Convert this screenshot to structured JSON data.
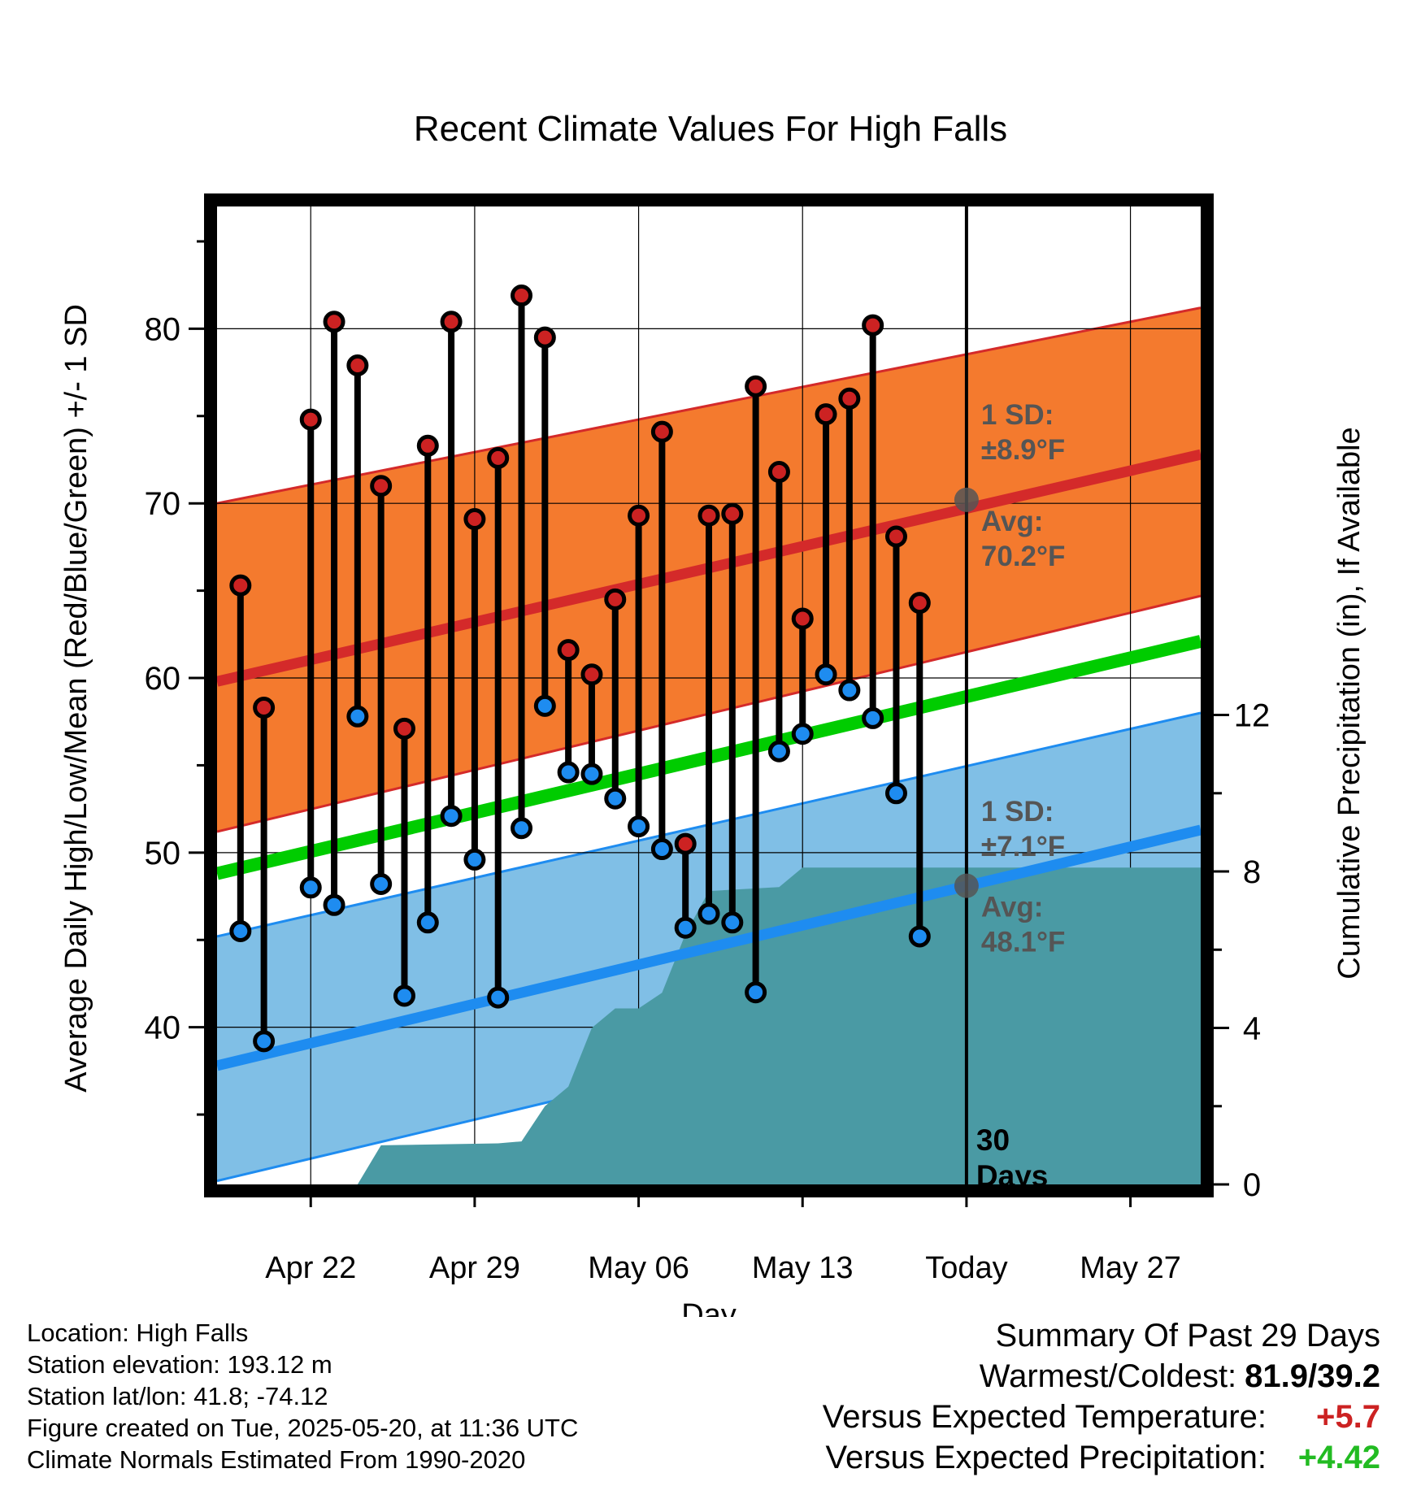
{
  "chart_data": {
    "type": "line",
    "title": "Recent Climate Values For High Falls",
    "xlabel": "Day",
    "ylabel": "Average Daily High/Low/Mean (Red/Blue/Green) +/- 1 SD",
    "y2label": "Cumulative Precipitation (in), If Available",
    "x_ticks": [
      "Apr 22",
      "Apr 29",
      "May 06",
      "May 13",
      "Today",
      "May 27"
    ],
    "y_ticks": [
      40,
      50,
      60,
      70,
      80
    ],
    "y2_ticks": [
      0,
      4,
      8,
      12
    ],
    "ylim": [
      31,
      87
    ],
    "y2lim": [
      0,
      25
    ],
    "xlim": [
      "2025-04-18",
      "2025-05-30"
    ],
    "today": "2025-05-20",
    "today_label": "30 Days",
    "normals": {
      "high_mean": [
        "2025-04-18",
        59.8,
        "2025-05-30",
        72.8
      ],
      "high_upper": [
        "2025-04-18",
        70.0,
        "2025-05-30",
        81.2
      ],
      "high_lower": [
        "2025-04-18",
        51.2,
        "2025-05-30",
        64.7
      ],
      "mean": [
        "2025-04-18",
        48.8,
        "2025-05-30",
        62.1
      ],
      "low_mean": [
        "2025-04-18",
        37.8,
        "2025-05-30",
        51.3
      ],
      "low_upper": [
        "2025-04-18",
        45.2,
        "2025-05-30",
        58.0
      ],
      "low_lower": [
        "2025-04-18",
        31.2,
        "2025-05-30",
        44.6
      ]
    },
    "high_annotation": {
      "sd": "1 SD:",
      "sd_value": "±8.9°F",
      "avg": "Avg:",
      "avg_value": "70.2°F",
      "avg_y": 70.2
    },
    "low_annotation": {
      "sd": "1 SD:",
      "sd_value": "±7.1°F",
      "avg": "Avg:",
      "avg_value": "48.1°F",
      "avg_y": 48.1
    },
    "daily": [
      {
        "date": "2025-04-19",
        "high": 65.3,
        "low": 45.5
      },
      {
        "date": "2025-04-20",
        "high": 58.3,
        "low": 39.2
      },
      {
        "date": "2025-04-21",
        "high": null,
        "low": null
      },
      {
        "date": "2025-04-22",
        "high": 74.8,
        "low": 48.0
      },
      {
        "date": "2025-04-23",
        "high": 80.4,
        "low": 47.0
      },
      {
        "date": "2025-04-24",
        "high": 77.9,
        "low": 57.8
      },
      {
        "date": "2025-04-25",
        "high": 71.0,
        "low": 48.2
      },
      {
        "date": "2025-04-26",
        "high": 57.1,
        "low": 41.8
      },
      {
        "date": "2025-04-27",
        "high": 73.3,
        "low": 46.0
      },
      {
        "date": "2025-04-28",
        "high": 80.4,
        "low": 52.1
      },
      {
        "date": "2025-04-29",
        "high": 69.1,
        "low": 49.6
      },
      {
        "date": "2025-04-30",
        "high": 72.6,
        "low": 41.7
      },
      {
        "date": "2025-05-01",
        "high": 81.9,
        "low": 51.4
      },
      {
        "date": "2025-05-02",
        "high": 79.5,
        "low": 58.4
      },
      {
        "date": "2025-05-03",
        "high": 61.6,
        "low": 54.6
      },
      {
        "date": "2025-05-04",
        "high": 60.2,
        "low": 54.5
      },
      {
        "date": "2025-05-05",
        "high": 64.5,
        "low": 53.1
      },
      {
        "date": "2025-05-06",
        "high": 69.3,
        "low": 51.5
      },
      {
        "date": "2025-05-07",
        "high": 74.1,
        "low": 50.2
      },
      {
        "date": "2025-05-08",
        "high": 50.5,
        "low": 45.7
      },
      {
        "date": "2025-05-09",
        "high": 69.3,
        "low": 46.5
      },
      {
        "date": "2025-05-10",
        "high": 69.4,
        "low": 46.0
      },
      {
        "date": "2025-05-11",
        "high": 76.7,
        "low": 42.0
      },
      {
        "date": "2025-05-12",
        "high": 71.8,
        "low": 55.8
      },
      {
        "date": "2025-05-13",
        "high": 63.4,
        "low": 56.8
      },
      {
        "date": "2025-05-14",
        "high": 75.1,
        "low": 60.2
      },
      {
        "date": "2025-05-15",
        "high": 76.0,
        "low": 59.3
      },
      {
        "date": "2025-05-16",
        "high": 80.2,
        "low": 57.7
      },
      {
        "date": "2025-05-17",
        "high": 68.1,
        "low": 53.4
      },
      {
        "date": "2025-05-18",
        "high": 64.3,
        "low": 45.2
      }
    ],
    "precip_cumulative": [
      [
        "2025-04-18",
        0
      ],
      [
        "2025-04-24",
        0
      ],
      [
        "2025-04-25",
        1.0
      ],
      [
        "2025-04-30",
        1.05
      ],
      [
        "2025-05-01",
        1.1
      ],
      [
        "2025-05-02",
        2.0
      ],
      [
        "2025-05-03",
        2.5
      ],
      [
        "2025-05-04",
        4.0
      ],
      [
        "2025-05-05",
        4.5
      ],
      [
        "2025-05-06",
        4.5
      ],
      [
        "2025-05-07",
        4.9
      ],
      [
        "2025-05-08",
        6.4
      ],
      [
        "2025-05-09",
        7.5
      ],
      [
        "2025-05-12",
        7.6
      ],
      [
        "2025-05-13",
        8.1
      ],
      [
        "2025-05-30",
        8.1
      ]
    ]
  },
  "colors": {
    "high_band": "#f47a2e",
    "high_line": "#d42a2a",
    "low_band": "#80bfe6",
    "low_line": "#1e8cf0",
    "mean_line": "#00cc00",
    "precip": "#4a9aa4",
    "high_dot": "#cc2222",
    "low_dot": "#1e8cf0",
    "annotation": "#555555",
    "positive_temp": "#cc2222",
    "positive_precip": "#22bb22"
  },
  "info": {
    "location": "Location: High Falls",
    "elevation": "Station elevation: 193.12 m",
    "latlon": "Station lat/lon: 41.8; -74.12",
    "created": "Figure created on Tue, 2025-05-20, at 11:36 UTC",
    "normals": "Climate Normals Estimated From 1990-2020"
  },
  "summary": {
    "title": "Summary Of Past 29 Days",
    "warm_cold_label": "Warmest/Coldest:",
    "warm_cold_value": "81.9/39.2",
    "temp_label": "Versus Expected Temperature:",
    "temp_value": "+5.7",
    "precip_label": "Versus Expected Precipitation:",
    "precip_value": "+4.42"
  }
}
